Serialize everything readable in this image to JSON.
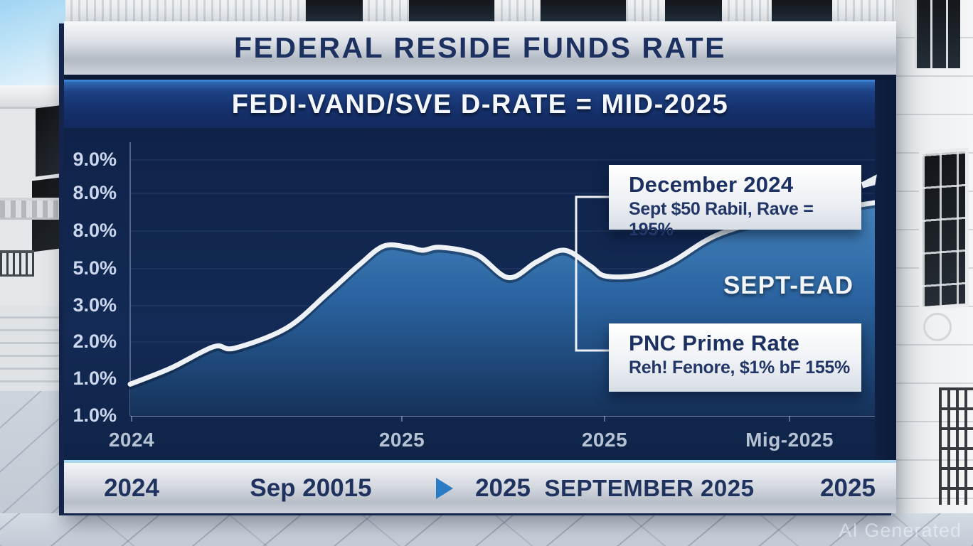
{
  "header": {
    "title": "FEDERAL RESIDE FUNDS RATE",
    "subtitle": "FEDI-VAND/SVE D-RATE = MID-2025"
  },
  "y_axis": {
    "labels": [
      "9.0%",
      "8.0%",
      "8.0%",
      "5.0%",
      "3.0%",
      "2.0%",
      "1.0%",
      "1.0%"
    ]
  },
  "x_axis": {
    "labels": [
      "2024",
      "2025",
      "2025",
      "Mig-2025"
    ]
  },
  "callouts": {
    "december": {
      "title": "December 2024",
      "subtitle": "Sept $50 Rabil, Rave = 195%"
    },
    "pnc": {
      "title": "PNC Prime Rate",
      "subtitle": "Reh! Fenore, $1% bF 155%"
    },
    "sept_ead": "SEPT-EAD"
  },
  "footer": {
    "items": [
      "2024",
      "Sep 20015",
      "2025",
      "SEPTEMBER 2025",
      "2025"
    ]
  },
  "watermark": "AI Generated",
  "colors": {
    "panel_navy": "#122a55",
    "title_navy": "#1d3160",
    "band_blue": "#15306b",
    "accent_light_blue": "#a6d7ef",
    "curve_white": "#eef2f6",
    "area_top": "#4585bd",
    "area_bottom": "#153159",
    "silver_bar": "#d6dae1",
    "callout_bg": "#eef1f5",
    "play_triangle": "#2a7cc4"
  },
  "chart_data": {
    "type": "area",
    "title": "FEDERAL RESIDE FUNDS RATE",
    "subtitle": "FEDI-VAND/SVE D-RATE = MID-2025",
    "x_tick_labels": [
      "2024",
      "2025",
      "2025",
      "Mig-2025"
    ],
    "y_tick_labels": [
      "9.0%",
      "8.0%",
      "8.0%",
      "5.0%",
      "3.0%",
      "2.0%",
      "1.0%",
      "1.0%"
    ],
    "ylim": [
      0,
      9.5
    ],
    "grid": true,
    "legend": false,
    "series": [
      {
        "name": "Federal Funds Rate",
        "x_frac": [
          0,
          0.054,
          0.112,
          0.14,
          0.21,
          0.265,
          0.308,
          0.341,
          0.374,
          0.393,
          0.417,
          0.465,
          0.508,
          0.546,
          0.583,
          0.618,
          0.639,
          0.685,
          0.728,
          0.79,
          0.876,
          1.0
        ],
        "pct": [
          1.1,
          1.65,
          2.4,
          2.35,
          3.05,
          4.25,
          5.25,
          5.9,
          5.85,
          5.75,
          5.85,
          5.6,
          4.8,
          5.35,
          5.75,
          5.2,
          4.85,
          4.9,
          5.35,
          6.3,
          6.9,
          7.4
        ]
      }
    ],
    "annotations": [
      "December 2024 — Sept $50 Rabil, Rave = 195%",
      "PNC Prime Rate — Reh! Fenore, $1% bF 155%",
      "SEPT-EAD"
    ]
  }
}
